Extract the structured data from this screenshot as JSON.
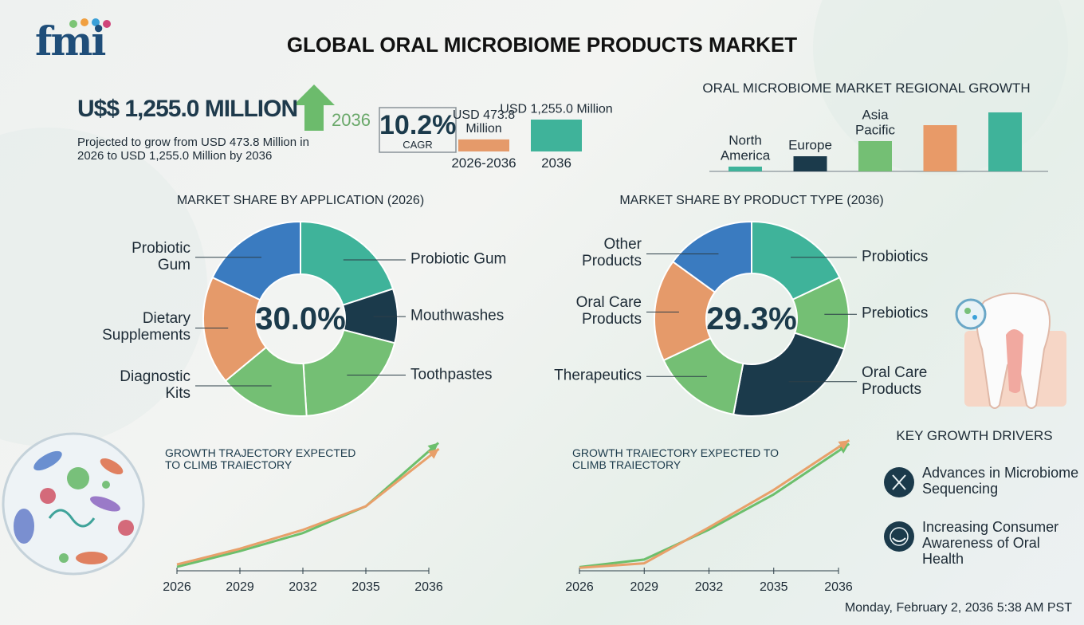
{
  "logo": "fmi",
  "title": "GLOBAL ORAL MICROBIOME PRODUCTS MARKET",
  "headline": {
    "amount": "U$$ 1,255.0 MILLION",
    "year": "2036",
    "description": "Projected to grow from USD 473.8 Million in 2026 to USD 1,255.0 Million by 2036"
  },
  "chart_data": [
    {
      "type": "bar",
      "annotation": "10.2%",
      "annotation_label": "CAGR",
      "categories": [
        "2026-2036",
        "2036"
      ],
      "values": [
        473.8,
        1255.0
      ],
      "value_labels": [
        "USD 473.8 Million",
        "USD 1,255.0 Million"
      ],
      "colors": [
        "#e59a6a",
        "#3fb39a"
      ]
    },
    {
      "type": "bar",
      "title": "ORAL MICROBIOME MARKET REGIONAL GROWTH",
      "categories": [
        "North America",
        "Europe",
        "Asia Pacific",
        null,
        null
      ],
      "values": [
        6,
        19,
        38,
        58,
        74
      ],
      "colors": [
        "#3fb39a",
        "#1b3a4b",
        "#74bf74",
        "#e89a68",
        "#3fb39a"
      ]
    },
    {
      "type": "donut",
      "title": "MARKET SHARE BY APPLICATION (2026)",
      "center_label": "30.0%",
      "categories": [
        "Probiotic Gum",
        "Mouthwashes",
        "Toothpastes",
        "Diagnostic Kits",
        "Dietary Supplements",
        "Probiotic Gum"
      ],
      "values": [
        20,
        9,
        20,
        15,
        18,
        18
      ],
      "colors": [
        "#3fb39a",
        "#1b3a4b",
        "#74bf74",
        "#74bf74",
        "#e59a6a",
        "#3a7bc0"
      ]
    },
    {
      "type": "donut",
      "title": "MARKET SHARE BY PRODUCT TYPE (2036)",
      "center_label": "29.3%",
      "categories": [
        "Probiotics",
        "Prebiotics",
        "Oral Care Products",
        "Therapeutics",
        "Oral Care Products",
        "Other Products"
      ],
      "values": [
        18,
        12,
        23,
        15,
        17,
        15
      ],
      "colors": [
        "#3fb39a",
        "#74bf74",
        "#1b3a4b",
        "#74bf74",
        "#e59a6a",
        "#3a7bc0"
      ]
    },
    {
      "type": "line",
      "title": "GROWTH TRAJECTORY EXPECTED TO CLIMB TRAIECTORY",
      "categories": [
        "2026",
        "2029",
        "2032",
        "2035",
        "2036"
      ],
      "series": [
        {
          "color": "#6cbf6c",
          "values": [
            5,
            25,
            48,
            82,
            152
          ]
        },
        {
          "color": "#e8a06a",
          "values": [
            8,
            28,
            52,
            82,
            145
          ]
        }
      ]
    },
    {
      "type": "line",
      "title": "GROWTH TRAIECTORY EXPECTED TO CLIMB TRAIECTORY",
      "categories": [
        "2026",
        "2029",
        "2032",
        "2035",
        "2036"
      ],
      "series": [
        {
          "color": "#6cbf6c",
          "values": [
            5,
            15,
            55,
            102,
            160
          ]
        },
        {
          "color": "#e8a06a",
          "values": [
            4,
            10,
            58,
            108,
            165
          ]
        }
      ]
    }
  ],
  "drivers": {
    "title": "KEY GROWTH DRIVERS",
    "items": [
      "Advances in Microbiome Sequencing",
      "Increasing Consumer Awareness of Oral Health"
    ]
  },
  "timestamp": "Monday, February 2, 2036 5:38 AM PST"
}
